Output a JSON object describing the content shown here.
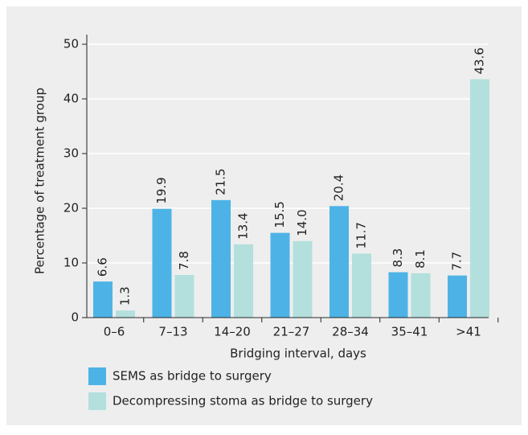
{
  "chart_data": {
    "type": "bar",
    "x_label": "Bridging interval, days",
    "y_label": "Percentage of treatment group",
    "categories": [
      "0–6",
      "7–13",
      "14–20",
      "21–27",
      "28–34",
      "35–41",
      ">41"
    ],
    "series": [
      {
        "name": "SEMS as bridge to surgery",
        "color": "#4db3e6",
        "values": [
          6.6,
          19.9,
          21.5,
          15.5,
          20.4,
          8.3,
          7.7
        ],
        "value_labels": [
          "6.6",
          "19.9",
          "21.5",
          "15.5",
          "20.4",
          "8.3",
          "7.7"
        ]
      },
      {
        "name": "Decompressing stoma as bridge to surgery",
        "color": "#b3e0dc",
        "values": [
          1.3,
          7.8,
          13.4,
          14.0,
          11.7,
          8.1,
          43.6
        ],
        "value_labels": [
          "1.3",
          "7.8",
          "13.4",
          "14.0",
          "11.7",
          "8.1",
          "43.6"
        ]
      }
    ],
    "ylim": [
      0,
      50
    ],
    "yticks": [
      0,
      10,
      20,
      30,
      40,
      50
    ],
    "grid": true
  }
}
